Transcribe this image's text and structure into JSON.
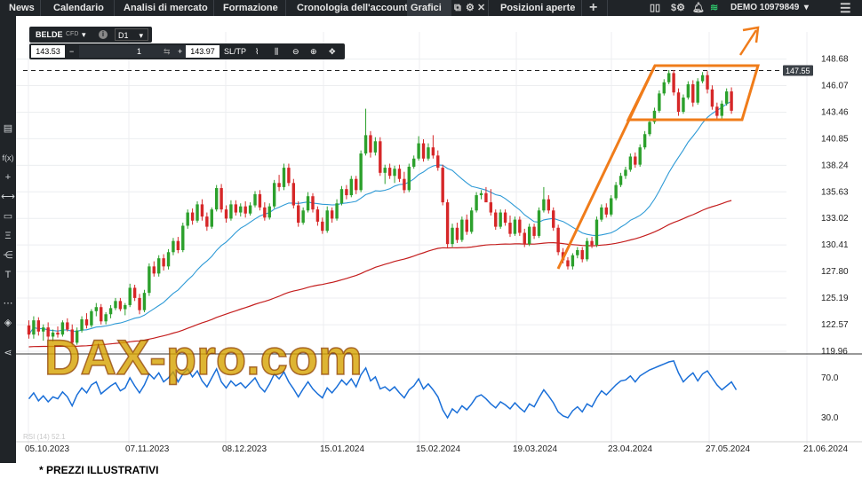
{
  "nav": {
    "tabs": [
      "News",
      "Calendario",
      "Analisi di mercato",
      "Formazione",
      "Cronologia dell'account",
      "Grafici",
      "Posizioni aperte"
    ],
    "add_tab": "+",
    "account": "DEMO",
    "account_number": "10979849"
  },
  "instrument": {
    "symbol": "BELDE",
    "type": "CFD",
    "info": "i",
    "timeframe": "D1"
  },
  "order": {
    "sell_price": "143.53",
    "minus": "−",
    "quantity": "1",
    "plus": "+",
    "buy_price": "143.97",
    "sltp": "SL/TP"
  },
  "left_tools": [
    "▤",
    "f(x)",
    "+",
    "⟷",
    "▭",
    "Ξ",
    "⋲",
    "T",
    "⋯",
    "◈",
    "⋖"
  ],
  "watermark": "DAX-pro.com",
  "footer_note": "* PREZZI ILLUSTRATIVI",
  "colors": {
    "up": "#2ca02c",
    "down": "#d62728",
    "ma_fast": "#2e9ad6",
    "ma_slow": "#c41e1e",
    "rsi": "#1a6fd8",
    "annotation": "#f07c1a"
  },
  "chart_data": {
    "type": "candlestick",
    "x_ticks": [
      "05.10.2023",
      "07.11.2023",
      "08.12.2023",
      "15.01.2024",
      "15.02.2024",
      "19.03.2024",
      "23.04.2024",
      "27.05.2024",
      "21.06.2024"
    ],
    "y_ticks": [
      "148.68",
      "146.07",
      "143.46",
      "140.85",
      "138.24",
      "135.63",
      "133.02",
      "130.41",
      "127.80",
      "125.19",
      "122.57",
      "119.96"
    ],
    "current_price": "147.55",
    "rsi": {
      "label": "RSI (14) 52.1",
      "ticks": [
        "70.0",
        "30.0"
      ]
    },
    "ohlc": [
      [
        122.5,
        123.0,
        121.2,
        121.6
      ],
      [
        121.6,
        123.4,
        121.2,
        123.0
      ],
      [
        123.0,
        123.3,
        121.5,
        121.9
      ],
      [
        121.9,
        122.6,
        121.0,
        122.3
      ],
      [
        122.3,
        122.8,
        121.1,
        121.4
      ],
      [
        121.4,
        122.1,
        120.9,
        121.8
      ],
      [
        121.8,
        122.4,
        121.3,
        121.6
      ],
      [
        121.6,
        123.0,
        121.4,
        122.8
      ],
      [
        122.8,
        123.2,
        121.9,
        122.1
      ],
      [
        122.1,
        122.6,
        120.4,
        120.8
      ],
      [
        120.8,
        122.3,
        120.6,
        122.0
      ],
      [
        122.0,
        123.4,
        121.8,
        123.1
      ],
      [
        123.1,
        123.7,
        122.2,
        122.5
      ],
      [
        122.5,
        124.1,
        122.3,
        123.9
      ],
      [
        123.9,
        124.7,
        123.4,
        124.3
      ],
      [
        124.3,
        124.6,
        122.6,
        122.9
      ],
      [
        122.9,
        123.8,
        122.6,
        123.6
      ],
      [
        123.6,
        124.5,
        123.2,
        124.2
      ],
      [
        124.2,
        125.2,
        124.0,
        124.9
      ],
      [
        124.9,
        125.2,
        123.9,
        124.1
      ],
      [
        124.1,
        124.7,
        123.5,
        124.5
      ],
      [
        124.5,
        126.6,
        124.3,
        126.2
      ],
      [
        126.2,
        126.5,
        124.9,
        125.2
      ],
      [
        125.2,
        125.6,
        123.6,
        124.0
      ],
      [
        124.0,
        126.0,
        123.8,
        125.7
      ],
      [
        125.7,
        128.6,
        125.4,
        128.3
      ],
      [
        128.3,
        128.8,
        127.3,
        127.6
      ],
      [
        127.6,
        129.4,
        127.3,
        129.1
      ],
      [
        129.1,
        129.5,
        127.9,
        128.3
      ],
      [
        128.3,
        130.0,
        128.0,
        129.7
      ],
      [
        129.7,
        131.1,
        129.4,
        130.8
      ],
      [
        130.8,
        131.2,
        129.6,
        129.9
      ],
      [
        129.9,
        132.6,
        129.7,
        132.3
      ],
      [
        132.3,
        133.9,
        132.0,
        133.6
      ],
      [
        133.6,
        134.0,
        132.4,
        132.8
      ],
      [
        132.8,
        134.7,
        132.6,
        134.4
      ],
      [
        134.4,
        134.9,
        132.8,
        133.2
      ],
      [
        133.2,
        133.6,
        131.8,
        132.2
      ],
      [
        132.2,
        134.1,
        132.0,
        133.9
      ],
      [
        133.9,
        136.3,
        133.7,
        136.0
      ],
      [
        136.0,
        136.4,
        133.6,
        133.9
      ],
      [
        133.9,
        134.3,
        132.6,
        133.0
      ],
      [
        133.0,
        134.8,
        132.8,
        134.4
      ],
      [
        134.4,
        134.8,
        133.3,
        133.6
      ],
      [
        133.6,
        134.5,
        133.2,
        134.2
      ],
      [
        134.2,
        134.7,
        133.1,
        133.5
      ],
      [
        133.5,
        134.6,
        133.3,
        134.3
      ],
      [
        134.3,
        135.7,
        134.1,
        135.4
      ],
      [
        135.4,
        135.8,
        133.8,
        134.1
      ],
      [
        134.1,
        134.6,
        132.8,
        133.1
      ],
      [
        133.1,
        134.5,
        132.9,
        134.2
      ],
      [
        134.2,
        136.8,
        134.0,
        136.5
      ],
      [
        136.5,
        137.3,
        135.7,
        136.1
      ],
      [
        136.1,
        138.4,
        135.8,
        138.0
      ],
      [
        138.0,
        138.4,
        136.2,
        136.5
      ],
      [
        136.5,
        136.9,
        134.0,
        134.3
      ],
      [
        134.3,
        134.7,
        132.2,
        132.6
      ],
      [
        132.6,
        134.1,
        132.4,
        133.8
      ],
      [
        133.8,
        135.6,
        133.6,
        135.2
      ],
      [
        135.2,
        135.5,
        133.6,
        133.9
      ],
      [
        133.9,
        134.2,
        132.3,
        132.7
      ],
      [
        132.7,
        133.1,
        131.5,
        131.8
      ],
      [
        131.8,
        134.2,
        131.6,
        133.8
      ],
      [
        133.8,
        134.1,
        132.6,
        133.0
      ],
      [
        133.0,
        134.9,
        132.8,
        134.5
      ],
      [
        134.5,
        136.2,
        134.3,
        135.9
      ],
      [
        135.9,
        136.3,
        134.9,
        135.3
      ],
      [
        135.3,
        137.2,
        135.1,
        136.9
      ],
      [
        136.9,
        137.2,
        135.4,
        135.8
      ],
      [
        135.8,
        139.7,
        135.6,
        139.4
      ],
      [
        139.4,
        143.8,
        139.2,
        141.2
      ],
      [
        141.2,
        141.6,
        139.0,
        139.5
      ],
      [
        139.5,
        141.0,
        139.2,
        140.6
      ],
      [
        140.6,
        141.0,
        137.2,
        137.5
      ],
      [
        137.5,
        138.3,
        136.4,
        138.0
      ],
      [
        138.0,
        138.4,
        136.9,
        137.2
      ],
      [
        137.2,
        138.2,
        136.5,
        137.9
      ],
      [
        137.9,
        138.3,
        136.6,
        136.9
      ],
      [
        136.9,
        137.6,
        135.5,
        135.8
      ],
      [
        135.8,
        138.4,
        135.6,
        138.1
      ],
      [
        138.1,
        139.2,
        137.9,
        138.9
      ],
      [
        138.9,
        141.1,
        138.7,
        140.4
      ],
      [
        140.4,
        140.8,
        138.6,
        138.9
      ],
      [
        138.9,
        140.4,
        138.7,
        140.0
      ],
      [
        140.0,
        141.2,
        138.9,
        139.2
      ],
      [
        139.2,
        139.7,
        137.7,
        138.0
      ],
      [
        138.0,
        138.3,
        134.3,
        134.6
      ],
      [
        134.6,
        134.9,
        130.1,
        130.5
      ],
      [
        130.5,
        132.5,
        130.2,
        132.1
      ],
      [
        132.1,
        132.6,
        130.6,
        130.9
      ],
      [
        130.9,
        133.2,
        130.7,
        132.9
      ],
      [
        132.9,
        133.4,
        131.4,
        131.7
      ],
      [
        131.7,
        134.1,
        131.5,
        133.8
      ],
      [
        133.8,
        135.6,
        133.6,
        135.3
      ],
      [
        135.3,
        135.8,
        134.9,
        135.5
      ],
      [
        135.5,
        136.1,
        134.8,
        134.6
      ],
      [
        134.6,
        135.9,
        133.3,
        133.6
      ],
      [
        133.6,
        133.9,
        131.9,
        132.2
      ],
      [
        132.2,
        133.9,
        132.0,
        133.6
      ],
      [
        133.6,
        133.9,
        132.3,
        132.6
      ],
      [
        132.6,
        133.3,
        131.2,
        131.5
      ],
      [
        131.5,
        133.2,
        131.3,
        132.9
      ],
      [
        132.9,
        133.2,
        131.3,
        131.6
      ],
      [
        131.6,
        132.0,
        130.2,
        130.5
      ],
      [
        130.5,
        132.5,
        130.3,
        132.2
      ],
      [
        132.2,
        132.5,
        131.0,
        131.3
      ],
      [
        131.3,
        134.1,
        131.1,
        133.8
      ],
      [
        133.8,
        136.1,
        133.6,
        134.9
      ],
      [
        134.9,
        135.3,
        133.5,
        133.8
      ],
      [
        133.8,
        134.1,
        131.8,
        132.1
      ],
      [
        132.1,
        132.4,
        129.4,
        129.7
      ],
      [
        129.7,
        130.1,
        128.6,
        128.9
      ],
      [
        128.9,
        129.2,
        128.0,
        128.3
      ],
      [
        128.3,
        129.6,
        128.0,
        129.4
      ],
      [
        129.4,
        130.2,
        129.1,
        129.9
      ],
      [
        129.9,
        130.2,
        128.7,
        129.0
      ],
      [
        129.0,
        131.1,
        128.8,
        130.8
      ],
      [
        130.8,
        131.2,
        130.1,
        130.4
      ],
      [
        130.4,
        133.2,
        130.2,
        132.9
      ],
      [
        132.9,
        134.4,
        132.7,
        134.1
      ],
      [
        134.1,
        134.5,
        133.1,
        133.4
      ],
      [
        133.4,
        135.3,
        133.2,
        135.0
      ],
      [
        135.0,
        136.6,
        134.8,
        136.3
      ],
      [
        136.3,
        137.5,
        136.1,
        137.2
      ],
      [
        137.2,
        138.1,
        136.9,
        137.8
      ],
      [
        137.8,
        139.4,
        137.6,
        139.1
      ],
      [
        139.1,
        139.5,
        138.0,
        138.3
      ],
      [
        138.3,
        140.3,
        138.1,
        140.0
      ],
      [
        140.0,
        141.6,
        139.8,
        141.3
      ],
      [
        141.3,
        142.8,
        141.1,
        142.5
      ],
      [
        142.5,
        143.9,
        142.3,
        143.6
      ],
      [
        143.6,
        145.6,
        143.4,
        145.3
      ],
      [
        145.3,
        146.7,
        145.1,
        146.4
      ],
      [
        146.4,
        147.6,
        146.2,
        147.3
      ],
      [
        147.3,
        147.6,
        145.1,
        145.4
      ],
      [
        145.4,
        145.8,
        143.1,
        143.5
      ],
      [
        143.5,
        145.2,
        143.3,
        144.9
      ],
      [
        144.9,
        146.5,
        144.7,
        146.2
      ],
      [
        146.2,
        146.6,
        144.0,
        144.4
      ],
      [
        144.4,
        146.8,
        144.2,
        146.5
      ],
      [
        146.5,
        147.4,
        146.3,
        147.1
      ],
      [
        147.1,
        147.5,
        145.3,
        145.7
      ],
      [
        145.7,
        146.1,
        143.7,
        144.0
      ],
      [
        144.0,
        144.4,
        142.7,
        143.1
      ],
      [
        143.1,
        144.6,
        142.8,
        144.3
      ],
      [
        144.3,
        145.8,
        144.1,
        145.5
      ],
      [
        145.5,
        145.9,
        143.3,
        143.6
      ]
    ],
    "rsi_values": [
      49,
      55,
      47,
      52,
      46,
      51,
      49,
      56,
      51,
      42,
      53,
      60,
      55,
      63,
      66,
      54,
      58,
      62,
      65,
      57,
      60,
      70,
      62,
      55,
      63,
      74,
      69,
      75,
      66,
      70,
      76,
      66,
      74,
      79,
      71,
      77,
      67,
      61,
      70,
      79,
      66,
      60,
      67,
      62,
      65,
      60,
      65,
      70,
      61,
      56,
      64,
      74,
      69,
      76,
      66,
      59,
      51,
      59,
      66,
      59,
      54,
      50,
      60,
      55,
      61,
      68,
      63,
      69,
      61,
      73,
      80,
      67,
      71,
      59,
      61,
      57,
      61,
      55,
      50,
      58,
      62,
      69,
      59,
      64,
      58,
      51,
      38,
      30,
      39,
      35,
      42,
      38,
      44,
      51,
      53,
      49,
      44,
      40,
      46,
      43,
      39,
      45,
      40,
      36,
      44,
      41,
      50,
      58,
      52,
      45,
      36,
      32,
      30,
      37,
      41,
      36,
      44,
      41,
      50,
      57,
      53,
      58,
      63,
      67,
      68,
      72,
      66,
      72,
      75,
      78,
      80,
      82,
      84,
      86,
      87,
      75,
      66,
      71,
      75,
      67,
      74,
      77,
      70,
      63,
      58,
      62,
      66,
      58
    ],
    "annotations": [
      "Orange flag pattern drawn on the price chart",
      "Orange arrow pointing up and right"
    ]
  }
}
